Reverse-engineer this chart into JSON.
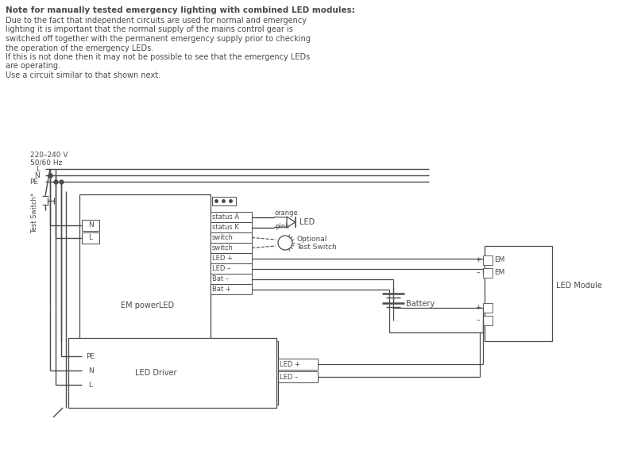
{
  "bg_color": "#ffffff",
  "line_color": "#4a4a4a",
  "text_color": "#4a4a4a",
  "title_bold": "Note for manually tested emergency lighting with combined LED modules:",
  "body_text": [
    "Due to the fact that independent circuits are used for normal and emergency",
    "lighting it is important that the normal supply of the mains control gear is",
    "switched off together with the permanent emergency supply prior to checking",
    "the operation of the emergency LEDs.",
    "If this is not done then it may not be possible to see that the emergency LEDs",
    "are operating.",
    "Use a circuit similar to that shown next."
  ],
  "voltage_label": "220–240 V",
  "freq_label": "50/60 Hz",
  "terminal_labels_em": [
    "status A",
    "status K",
    "switch",
    "switch",
    "LED +",
    "LED –",
    "Bat –",
    "Bat +"
  ],
  "terminal_labels_driver": [
    "LED +",
    "LED –"
  ],
  "terminal_labels_driver_left": [
    "PE",
    "N",
    "L"
  ],
  "orange_label": "orange",
  "pink_label": "pink"
}
